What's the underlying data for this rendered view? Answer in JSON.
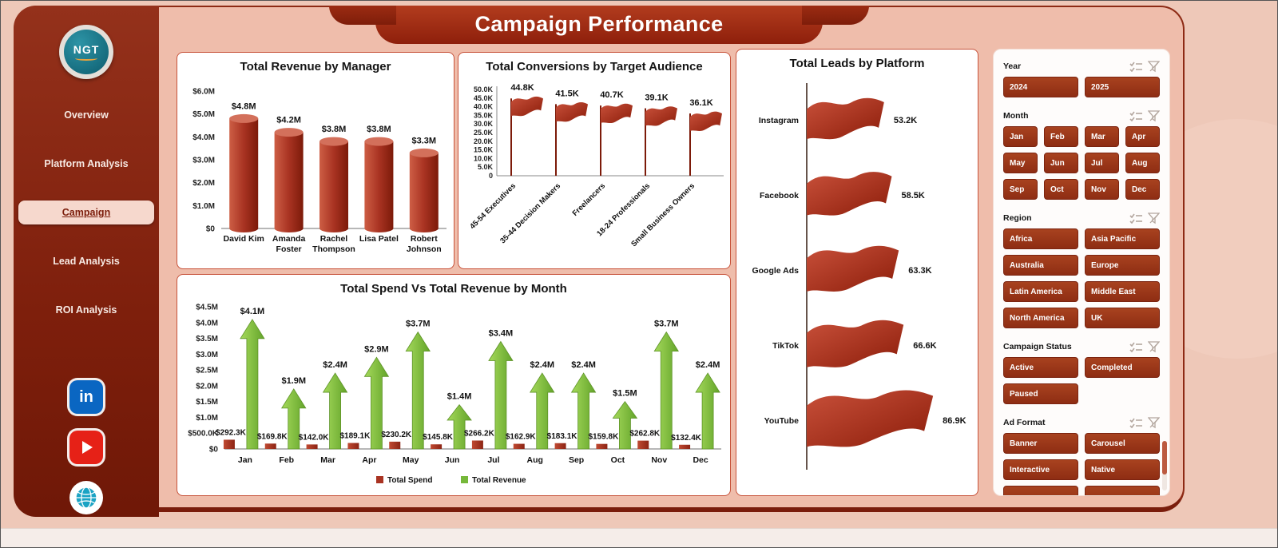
{
  "title": "Campaign Performance",
  "sidebar": {
    "logo_text": "NGT",
    "items": [
      {
        "label": "Overview",
        "active": false
      },
      {
        "label": "Platform Analysis",
        "active": false
      },
      {
        "label": "Campaign",
        "active": true
      },
      {
        "label": "Lead Analysis",
        "active": false
      },
      {
        "label": "ROI Analysis",
        "active": false
      }
    ],
    "social_icons": [
      "linkedin-icon",
      "youtube-icon",
      "globe-icon"
    ]
  },
  "chart_data": [
    {
      "id": "revenue-by-manager",
      "type": "bar",
      "title": "Total Revenue by Manager",
      "categories": [
        "David Kim",
        "Amanda Foster",
        "Rachel Thompson",
        "Lisa Patel",
        "Robert Johnson"
      ],
      "values": [
        4.8,
        4.2,
        3.8,
        3.8,
        3.3
      ],
      "value_labels": [
        "$4.8M",
        "$4.2M",
        "$3.8M",
        "$3.8M",
        "$3.3M"
      ],
      "unit": "millions USD",
      "y_ticks": [
        "$6.0M",
        "$5.0M",
        "$4.0M",
        "$3.0M",
        "$2.0M",
        "$1.0M",
        "$0"
      ],
      "ylim": [
        0,
        6
      ]
    },
    {
      "id": "conversions-by-target-audience",
      "type": "bar",
      "title": "Total Conversions by Target Audience",
      "categories": [
        "45-54 Executives",
        "35-44 Decision Makers",
        "Freelancers",
        "18-24 Professionals",
        "Small Business Owners"
      ],
      "values": [
        44.8,
        41.5,
        40.7,
        39.1,
        36.1
      ],
      "value_labels": [
        "44.8K",
        "41.5K",
        "40.7K",
        "39.1K",
        "36.1K"
      ],
      "unit": "thousands",
      "y_ticks": [
        "50.0K",
        "45.0K",
        "40.0K",
        "35.0K",
        "30.0K",
        "25.0K",
        "20.0K",
        "15.0K",
        "10.0K",
        "5.0K",
        "0"
      ],
      "ylim": [
        0,
        50
      ]
    },
    {
      "id": "spend-vs-revenue-by-month",
      "type": "bar",
      "title": "Total Spend Vs Total Revenue by Month",
      "categories": [
        "Jan",
        "Feb",
        "Mar",
        "Apr",
        "May",
        "Jun",
        "Jul",
        "Aug",
        "Sep",
        "Oct",
        "Nov",
        "Dec"
      ],
      "series": [
        {
          "name": "Total Spend",
          "unit": "thousands USD",
          "color": "#a93322",
          "values": [
            292.3,
            169.8,
            142.0,
            189.1,
            230.2,
            145.8,
            266.2,
            162.9,
            183.1,
            159.8,
            262.8,
            132.4
          ],
          "value_labels": [
            "$292.3K",
            "$169.8K",
            "$142.0K",
            "$189.1K",
            "$230.2K",
            "$145.8K",
            "$266.2K",
            "$162.9K",
            "$183.1K",
            "$159.8K",
            "$262.8K",
            "$132.4K"
          ]
        },
        {
          "name": "Total Revenue",
          "unit": "millions USD",
          "color": "#76b83a",
          "values": [
            4.1,
            1.9,
            2.4,
            2.9,
            3.7,
            1.4,
            3.4,
            2.4,
            2.4,
            1.5,
            3.7,
            2.4
          ],
          "value_labels": [
            "$4.1M",
            "$1.9M",
            "$2.4M",
            "$2.9M",
            "$3.7M",
            "$1.4M",
            "$3.4M",
            "$2.4M",
            "$2.4M",
            "$1.5M",
            "$3.7M",
            "$2.4M"
          ]
        }
      ],
      "y_ticks": [
        "$4.5M",
        "$4.0M",
        "$3.5M",
        "$3.0M",
        "$2.5M",
        "$2.0M",
        "$1.5M",
        "$1.0M",
        "$500.0K",
        "$0"
      ],
      "ylim_millions": [
        0,
        4.5
      ],
      "legend": [
        "Total Spend",
        "Total Revenue"
      ],
      "legend_position": "bottom"
    },
    {
      "id": "leads-by-platform",
      "type": "bar",
      "title": "Total Leads by Platform",
      "categories": [
        "Instagram",
        "Facebook",
        "Google Ads",
        "TikTok",
        "YouTube"
      ],
      "values": [
        53.2,
        58.5,
        63.3,
        66.6,
        86.9
      ],
      "value_labels": [
        "53.2K",
        "58.5K",
        "63.3K",
        "66.6K",
        "86.9K"
      ],
      "unit": "thousands"
    }
  ],
  "slicers": [
    {
      "title": "Year",
      "columns": 2,
      "options": [
        "2024",
        "2025"
      ]
    },
    {
      "title": "Month",
      "columns": 4,
      "options": [
        "Jan",
        "Feb",
        "Mar",
        "Apr",
        "May",
        "Jun",
        "Jul",
        "Aug",
        "Sep",
        "Oct",
        "Nov",
        "Dec"
      ]
    },
    {
      "title": "Region",
      "columns": 2,
      "options": [
        "Africa",
        "Asia Pacific",
        "Australia",
        "Europe",
        "Latin America",
        "Middle East",
        "North America",
        "UK"
      ]
    },
    {
      "title": "Campaign Status",
      "columns": 2,
      "options": [
        "Active",
        "Completed",
        "Paused"
      ]
    },
    {
      "title": "Ad Format",
      "columns": 2,
      "options": [
        "Banner",
        "Carousel",
        "Interactive",
        "Native"
      ],
      "partial_row": true
    }
  ],
  "colors": {
    "accent_dark_red": "#8c2111",
    "bar_red": "#a93322",
    "arrow_green": "#76b83a",
    "canvas_salmon": "#efbdab",
    "slicer_button": "#9d3a1d"
  }
}
